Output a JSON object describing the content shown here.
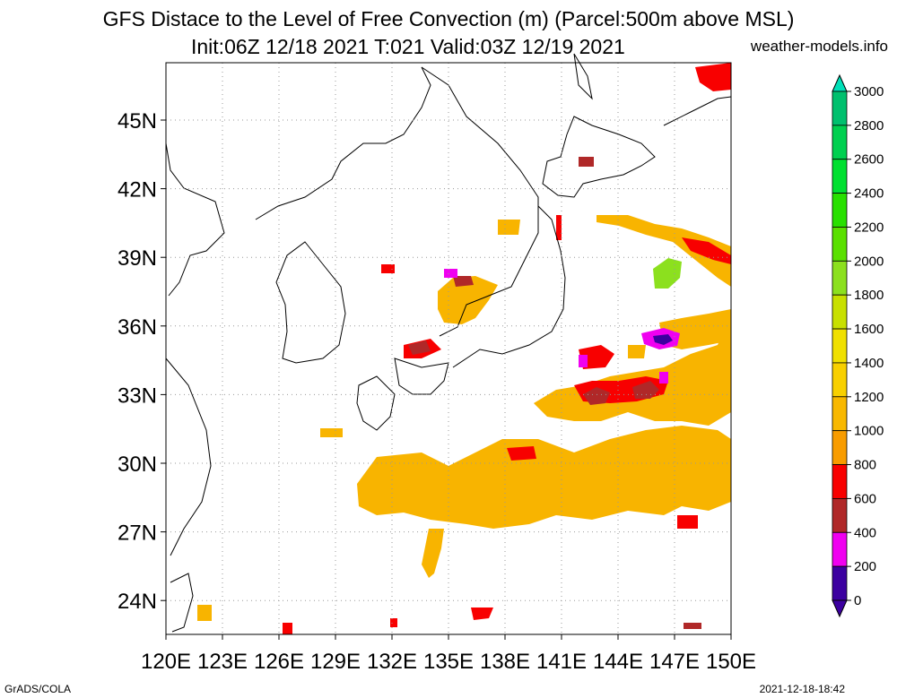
{
  "header": {
    "title_line1": "GFS Distace to the Level of Free Convection (m) (Parcel:500m above MSL)",
    "title_line2": "Init:06Z 12/18 2021 T:021 Valid:03Z 12/19 2021",
    "site": "weather-models.info"
  },
  "footer": {
    "left": "GrADS/COLA",
    "right": "2021-12-18-18:42"
  },
  "map": {
    "lat_labels": [
      "45N",
      "42N",
      "39N",
      "36N",
      "33N",
      "30N",
      "27N",
      "24N"
    ],
    "lon_labels": [
      "120E",
      "123E",
      "126E",
      "129E",
      "132E",
      "135E",
      "138E",
      "141E",
      "144E",
      "147E",
      "150E"
    ]
  },
  "colorbar": {
    "labels": [
      "3000",
      "2800",
      "2600",
      "2400",
      "2200",
      "2000",
      "1800",
      "1600",
      "1400",
      "1200",
      "1000",
      "800",
      "600",
      "400",
      "200",
      "0"
    ],
    "colors": [
      "#00e0b8",
      "#00c06e",
      "#00d050",
      "#00e030",
      "#28e000",
      "#5ae000",
      "#8ce01e",
      "#c8e000",
      "#f0e000",
      "#f8d000",
      "#f8b800",
      "#f89c00",
      "#f80000",
      "#b02828",
      "#f000f0",
      "#3c00a0"
    ]
  }
}
